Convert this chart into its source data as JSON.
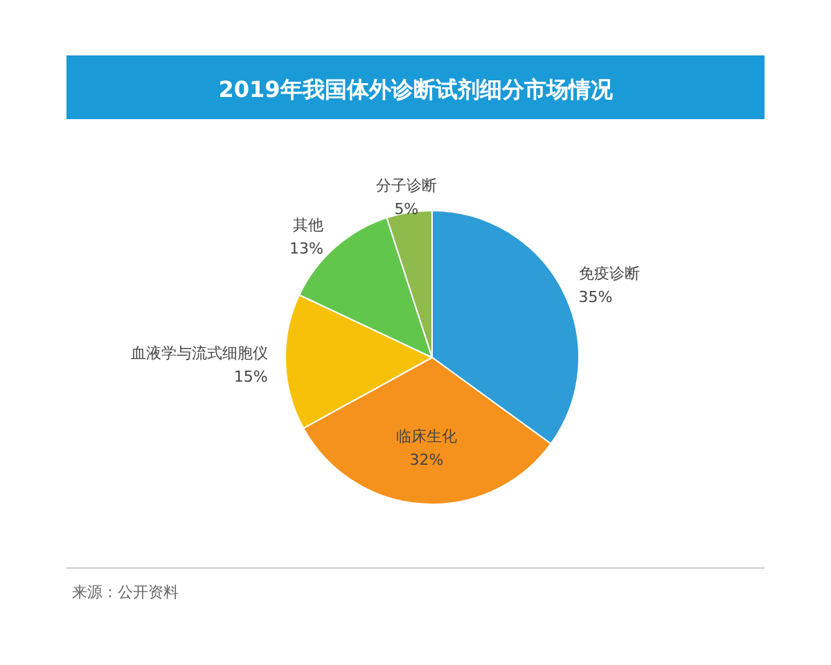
{
  "chart_data": {
    "type": "pie",
    "title": "2019年我国体外诊断试剂细分市场情况",
    "categories": [
      "免疫诊断",
      "临床生化",
      "血液学与流式细胞仪",
      "其他",
      "分子诊断"
    ],
    "values": [
      35,
      32,
      15,
      13,
      5
    ],
    "value_labels": [
      "35%",
      "32%",
      "15%",
      "13%",
      "5%"
    ],
    "colors": [
      "#2e9cd6",
      "#f5921e",
      "#f7c109",
      "#62c64c",
      "#8fba4c"
    ],
    "annotations": [
      "来源：公开资料"
    ]
  }
}
